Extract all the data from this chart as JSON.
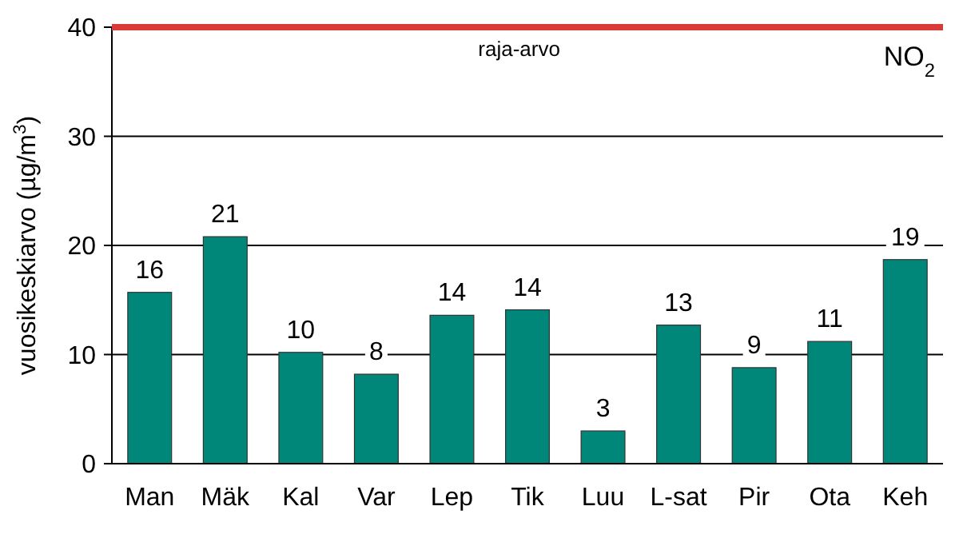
{
  "chart_data": {
    "type": "bar",
    "ylabel": "vuosikeskiarvo (µg/m$^{3}$)",
    "categories": [
      "Man",
      "Mäk",
      "Kal",
      "Var",
      "Lep",
      "Tik",
      "Luu",
      "L-sat",
      "Pir",
      "Ota",
      "Keh"
    ],
    "values": [
      15.7,
      20.8,
      10.2,
      8.2,
      13.6,
      14.1,
      3.0,
      12.7,
      8.8,
      11.2,
      18.7
    ],
    "value_labels": [
      "16",
      "21",
      "10",
      "8",
      "14",
      "14",
      "3",
      "13",
      "9",
      "11",
      "19"
    ],
    "color": "#00877a",
    "ylim": [
      0,
      40
    ],
    "yticks": [
      0,
      10,
      20,
      30,
      40
    ],
    "grid": "y",
    "ref_lines": [
      {
        "axis": "y",
        "value": 40,
        "label": "raja-arvo",
        "color": "#d93a36"
      }
    ],
    "annotations": [
      "NO$_{2}$"
    ]
  }
}
